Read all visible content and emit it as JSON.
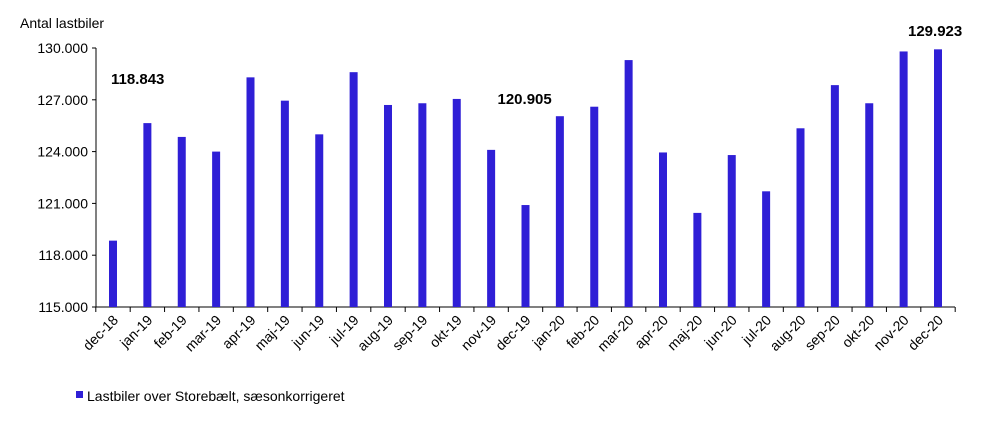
{
  "chart_data": {
    "type": "bar",
    "ylabel": "Antal lastbiler",
    "ylim": [
      115000,
      130000
    ],
    "yticks": [
      115000,
      118000,
      121000,
      124000,
      127000,
      130000
    ],
    "ytick_labels": [
      "115.000",
      "118.000",
      "121.000",
      "124.000",
      "127.000",
      "130.000"
    ],
    "categories": [
      "dec-18",
      "jan-19",
      "feb-19",
      "mar-19",
      "apr-19",
      "maj-19",
      "jun-19",
      "jul-19",
      "aug-19",
      "sep-19",
      "okt-19",
      "nov-19",
      "dec-19",
      "jan-20",
      "feb-20",
      "mar-20",
      "apr-20",
      "maj-20",
      "jun-20",
      "jul-20",
      "aug-20",
      "sep-20",
      "okt-20",
      "nov-20",
      "dec-20"
    ],
    "series": [
      {
        "name": "Lastbiler over Storebælt, sæsonkorrigeret",
        "color": "#2f1fd6",
        "values": [
          118843,
          125650,
          124850,
          124000,
          128300,
          126950,
          125000,
          128600,
          126700,
          126800,
          127050,
          124100,
          120905,
          126050,
          126600,
          129300,
          123950,
          120450,
          123800,
          121700,
          125350,
          127850,
          126800,
          129800,
          129923
        ]
      }
    ],
    "annotations": [
      {
        "category": "dec-18",
        "text": "118.843"
      },
      {
        "category": "dec-19",
        "text": "120.905"
      },
      {
        "category": "dec-20",
        "text": "129.923"
      }
    ],
    "legend": {
      "position": "bottom-left",
      "label": "Lastbiler over Storebælt, sæsonkorrigeret"
    },
    "grid": false
  }
}
